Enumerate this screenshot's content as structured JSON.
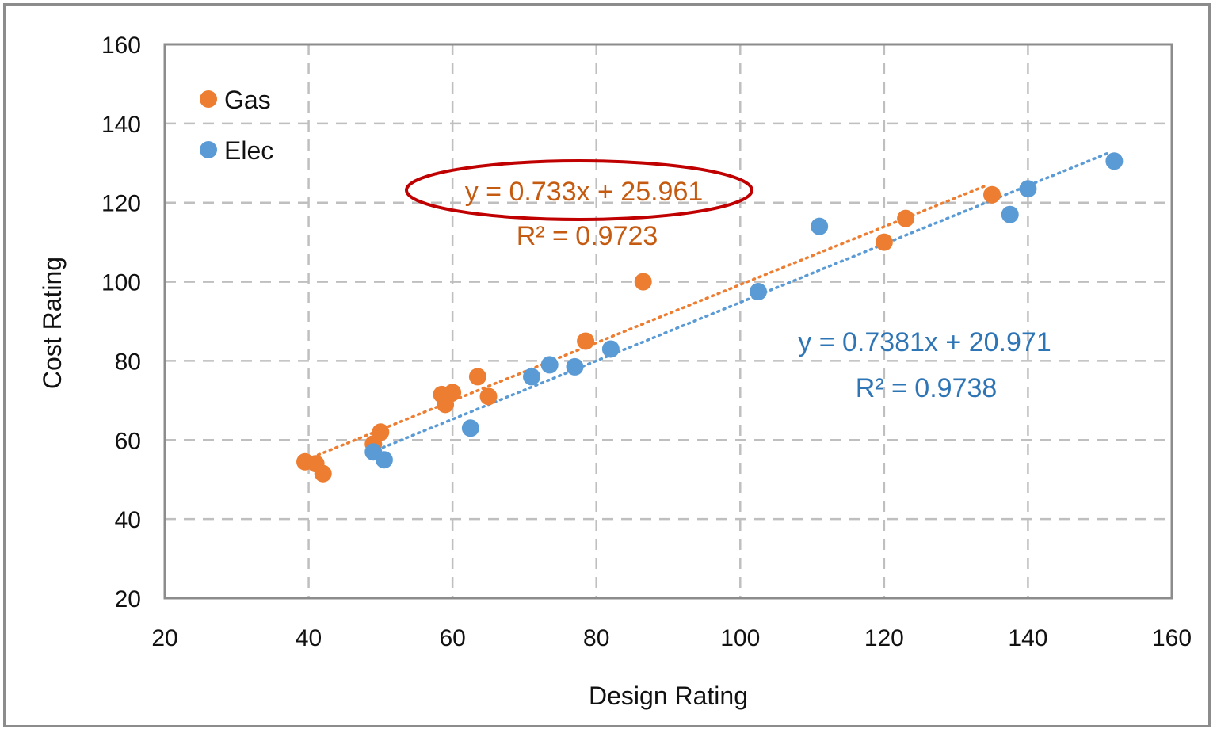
{
  "chart_data": {
    "type": "scatter",
    "xlabel": "Design Rating",
    "ylabel": "Cost Rating",
    "xlim": [
      20,
      160
    ],
    "ylim": [
      20,
      160
    ],
    "xticks": [
      "20",
      "40",
      "60",
      "80",
      "100",
      "120",
      "140",
      "160"
    ],
    "yticks": [
      "20",
      "40",
      "60",
      "80",
      "100",
      "120",
      "140",
      "160"
    ],
    "grid": true,
    "legend_position": "top-left",
    "series": [
      {
        "name": "Gas",
        "color": "#ED7D31",
        "points": [
          [
            39.5,
            54.5
          ],
          [
            41,
            54
          ],
          [
            42,
            51.5
          ],
          [
            49,
            59
          ],
          [
            50,
            62
          ],
          [
            58.5,
            71.5
          ],
          [
            59,
            69
          ],
          [
            60,
            72
          ],
          [
            63.5,
            76
          ],
          [
            65,
            71
          ],
          [
            78.5,
            85
          ],
          [
            86.5,
            100
          ],
          [
            120,
            110
          ],
          [
            123,
            116
          ],
          [
            135,
            122
          ]
        ],
        "trendline": {
          "slope": 0.733,
          "intercept": 25.961,
          "x_range": [
            40.5,
            134
          ],
          "equation": "y = 0.733x + 25.961",
          "r2": "R² = 0.9723"
        }
      },
      {
        "name": "Elec",
        "color": "#5B9BD5",
        "points": [
          [
            49,
            57
          ],
          [
            50.5,
            55
          ],
          [
            62.5,
            63
          ],
          [
            71,
            76
          ],
          [
            73.5,
            79
          ],
          [
            77,
            78.5
          ],
          [
            82,
            83
          ],
          [
            102.5,
            97.5
          ],
          [
            111,
            114
          ],
          [
            137.5,
            117
          ],
          [
            140,
            123.5
          ],
          [
            152,
            130.5
          ]
        ],
        "trendline": {
          "slope": 0.7381,
          "intercept": 20.971,
          "x_range": [
            49.5,
            151
          ],
          "equation": "y = 0.7381x + 20.971",
          "r2": "R² = 0.9738"
        }
      }
    ],
    "annotations": [
      {
        "type": "ellipse",
        "target": "Gas equation",
        "color": "#C00000"
      }
    ]
  }
}
